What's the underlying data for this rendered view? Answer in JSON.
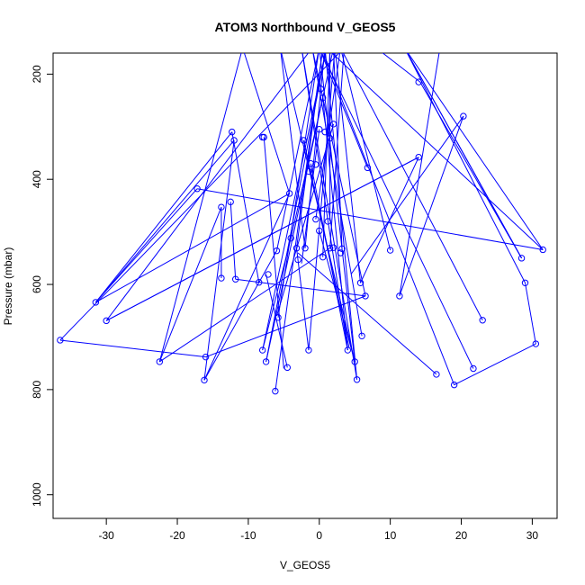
{
  "chart_data": {
    "type": "line",
    "title": "ATOM3 Northbound V_GEOS5",
    "xlabel": "V_GEOS5",
    "ylabel": "Pressure (mbar)",
    "xlim": [
      -37.5,
      33.5
    ],
    "ylim": [
      1045,
      160
    ],
    "y_reversed": true,
    "x_ticks": [
      -30,
      -20,
      -10,
      0,
      10,
      20,
      30
    ],
    "y_ticks": [
      200,
      400,
      600,
      800,
      1000
    ],
    "series_color": "#0000ff",
    "marker": "open-circle",
    "series": [
      {
        "values": [
          {
            "x": 0.5,
            "y": 150
          },
          {
            "x": -3.2,
            "y": 531
          },
          {
            "x": -1.5,
            "y": 725
          },
          {
            "x": 2.2,
            "y": 150
          },
          {
            "x": 5.8,
            "y": 597
          },
          {
            "x": 14.0,
            "y": 358
          },
          {
            "x": -30.0,
            "y": 669
          },
          {
            "x": -1.0,
            "y": 150
          },
          {
            "x": 6.5,
            "y": 622
          },
          {
            "x": -16.0,
            "y": 738
          },
          {
            "x": -36.5,
            "y": 706
          },
          {
            "x": 3.5,
            "y": 150
          },
          {
            "x": 1.5,
            "y": 531
          },
          {
            "x": -22.5,
            "y": 747
          },
          {
            "x": -10.8,
            "y": 150
          },
          {
            "x": -4.2,
            "y": 427
          },
          {
            "x": -31.5,
            "y": 634
          },
          {
            "x": -12.0,
            "y": 326
          },
          {
            "x": -16.2,
            "y": 782
          },
          {
            "x": -6.0,
            "y": 536
          },
          {
            "x": 0.0,
            "y": 150
          },
          {
            "x": 5.0,
            "y": 747
          },
          {
            "x": -5.5,
            "y": 150
          },
          {
            "x": -2.0,
            "y": 531
          },
          {
            "x": 0.8,
            "y": 150
          },
          {
            "x": 5.3,
            "y": 781
          },
          {
            "x": -2.5,
            "y": 150
          },
          {
            "x": 4.0,
            "y": 725
          },
          {
            "x": 0.5,
            "y": 245
          },
          {
            "x": -4.0,
            "y": 512
          },
          {
            "x": -8.0,
            "y": 725
          },
          {
            "x": 1.0,
            "y": 150
          },
          {
            "x": 31.5,
            "y": 534
          },
          {
            "x": 12.0,
            "y": 150
          },
          {
            "x": 28.5,
            "y": 550
          },
          {
            "x": 12.0,
            "y": 150
          },
          {
            "x": 29.0,
            "y": 597
          },
          {
            "x": 30.5,
            "y": 713
          },
          {
            "x": 19.0,
            "y": 791
          },
          {
            "x": 0.3,
            "y": 150
          },
          {
            "x": 10.0,
            "y": 150
          }
        ]
      }
    ],
    "scatter_only": [
      {
        "x": 14.0,
        "y": 215
      },
      {
        "x": 20.3,
        "y": 280
      },
      {
        "x": -12.3,
        "y": 310
      },
      {
        "x": -7.8,
        "y": 320
      },
      {
        "x": 2.0,
        "y": 295
      },
      {
        "x": 0.2,
        "y": 228
      },
      {
        "x": 0.8,
        "y": 310
      },
      {
        "x": 6.8,
        "y": 378
      },
      {
        "x": -17.2,
        "y": 418
      },
      {
        "x": -13.8,
        "y": 453
      },
      {
        "x": -12.5,
        "y": 443
      },
      {
        "x": -0.5,
        "y": 476
      },
      {
        "x": 0.0,
        "y": 498
      },
      {
        "x": 10.0,
        "y": 535
      },
      {
        "x": 3.0,
        "y": 540
      },
      {
        "x": 0.5,
        "y": 548
      },
      {
        "x": -3.0,
        "y": 553
      },
      {
        "x": -7.2,
        "y": 581
      },
      {
        "x": -13.8,
        "y": 588
      },
      {
        "x": -11.8,
        "y": 590
      },
      {
        "x": -8.5,
        "y": 596
      },
      {
        "x": 11.3,
        "y": 622
      },
      {
        "x": 23.0,
        "y": 668
      },
      {
        "x": -5.8,
        "y": 663
      },
      {
        "x": -7.5,
        "y": 747
      },
      {
        "x": -4.5,
        "y": 758
      },
      {
        "x": -6.2,
        "y": 803
      },
      {
        "x": 16.5,
        "y": 771
      },
      {
        "x": 21.7,
        "y": 760
      },
      {
        "x": 6.0,
        "y": 698
      },
      {
        "x": -1.2,
        "y": 370
      },
      {
        "x": 1.5,
        "y": 322
      },
      {
        "x": 0.0,
        "y": 305
      },
      {
        "x": -0.5,
        "y": 372
      },
      {
        "x": -1.5,
        "y": 385
      },
      {
        "x": -2.2,
        "y": 326
      },
      {
        "x": 1.2,
        "y": 480
      },
      {
        "x": 2.0,
        "y": 530
      },
      {
        "x": 3.2,
        "y": 532
      },
      {
        "x": -8.0,
        "y": 320
      }
    ],
    "extra_segments": [
      [
        {
          "x": 14.2,
          "y": 215
        },
        {
          "x": 8,
          "y": 150
        }
      ],
      [
        {
          "x": 14.2,
          "y": 215
        },
        {
          "x": 28.5,
          "y": 550
        }
      ],
      [
        {
          "x": 20.3,
          "y": 280
        },
        {
          "x": 11.3,
          "y": 622
        }
      ],
      [
        {
          "x": 20.3,
          "y": 280
        },
        {
          "x": 4.5,
          "y": 580
        }
      ],
      [
        {
          "x": -12.3,
          "y": 310
        },
        {
          "x": -31.5,
          "y": 634
        }
      ],
      [
        {
          "x": -12.3,
          "y": 310
        },
        {
          "x": -8.5,
          "y": 596
        }
      ],
      [
        {
          "x": -17.2,
          "y": 418
        },
        {
          "x": 31.5,
          "y": 534
        }
      ],
      [
        {
          "x": -17.2,
          "y": 418
        },
        {
          "x": -31.5,
          "y": 634
        }
      ],
      [
        {
          "x": -13.8,
          "y": 453
        },
        {
          "x": -13.8,
          "y": 588
        }
      ],
      [
        {
          "x": -12.5,
          "y": 443
        },
        {
          "x": -11.8,
          "y": 590
        }
      ],
      [
        {
          "x": -11.8,
          "y": 590
        },
        {
          "x": 6.5,
          "y": 622
        }
      ],
      [
        {
          "x": -7.8,
          "y": 320
        },
        {
          "x": -5.0,
          "y": 760
        }
      ],
      [
        {
          "x": 6.8,
          "y": 378
        },
        {
          "x": 0.0,
          "y": 150
        }
      ],
      [
        {
          "x": 10.0,
          "y": 535
        },
        {
          "x": 3.0,
          "y": 150
        }
      ],
      [
        {
          "x": 11.3,
          "y": 622
        },
        {
          "x": 17.0,
          "y": 150
        }
      ],
      [
        {
          "x": 23.0,
          "y": 668
        },
        {
          "x": 3.0,
          "y": 150
        }
      ],
      [
        {
          "x": 6.0,
          "y": 698
        },
        {
          "x": -1.0,
          "y": 150
        }
      ],
      [
        {
          "x": 16.5,
          "y": 771
        },
        {
          "x": -3.0,
          "y": 540
        }
      ],
      [
        {
          "x": 21.7,
          "y": 760
        },
        {
          "x": 0.0,
          "y": 150
        }
      ],
      [
        {
          "x": -6.2,
          "y": 803
        },
        {
          "x": 0.5,
          "y": 150
        }
      ],
      [
        {
          "x": -7.5,
          "y": 747
        },
        {
          "x": 2.0,
          "y": 150
        }
      ],
      [
        {
          "x": -22.5,
          "y": 747
        },
        {
          "x": -13.8,
          "y": 453
        }
      ],
      [
        {
          "x": -16.2,
          "y": 782
        },
        {
          "x": -4.2,
          "y": 427
        }
      ],
      [
        {
          "x": -5.8,
          "y": 663
        },
        {
          "x": 0.0,
          "y": 150
        }
      ],
      [
        {
          "x": -4.5,
          "y": 758
        },
        {
          "x": -7.5,
          "y": 581
        }
      ],
      [
        {
          "x": -30.0,
          "y": 669
        },
        {
          "x": 14.0,
          "y": 358
        }
      ],
      [
        {
          "x": 1.0,
          "y": 150
        },
        {
          "x": -7.5,
          "y": 747
        }
      ],
      [
        {
          "x": 1.5,
          "y": 480
        },
        {
          "x": 1.5,
          "y": 150
        }
      ],
      [
        {
          "x": 3.2,
          "y": 532
        },
        {
          "x": 2.0,
          "y": 150
        }
      ],
      [
        {
          "x": 0.5,
          "y": 548
        },
        {
          "x": 1.5,
          "y": 150
        }
      ],
      [
        {
          "x": -0.5,
          "y": 476
        },
        {
          "x": 3.0,
          "y": 150
        }
      ],
      [
        {
          "x": 0.0,
          "y": 498
        },
        {
          "x": 5.0,
          "y": 747
        }
      ],
      [
        {
          "x": -1.2,
          "y": 370
        },
        {
          "x": 4.0,
          "y": 725
        }
      ],
      [
        {
          "x": -2.2,
          "y": 326
        },
        {
          "x": 4.2,
          "y": 720
        }
      ],
      [
        {
          "x": 0.0,
          "y": 305
        },
        {
          "x": -2.5,
          "y": 560
        }
      ],
      [
        {
          "x": 2.0,
          "y": 295
        },
        {
          "x": -6.0,
          "y": 660
        }
      ]
    ]
  }
}
